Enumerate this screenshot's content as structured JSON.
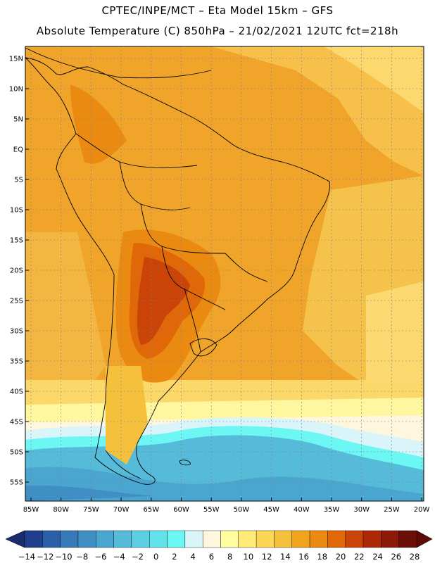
{
  "title": {
    "line1": "CPTEC/INPE/MCT –  Eta Model 15km – GFS",
    "line2": "Absolute Temperature (C) 850hPa – 21/02/2021 12UTC fct=218h"
  },
  "map": {
    "lat_labels": [
      "15N",
      "10N",
      "5N",
      "EQ",
      "5S",
      "10S",
      "15S",
      "20S",
      "25S",
      "30S",
      "35S",
      "40S",
      "45S",
      "50S",
      "55S"
    ],
    "lon_labels": [
      "85W",
      "80W",
      "75W",
      "70W",
      "65W",
      "60W",
      "55W",
      "50W",
      "45W",
      "40W",
      "35W",
      "30W",
      "25W",
      "20W"
    ]
  },
  "colorbar": {
    "labels": [
      "−14",
      "−12",
      "−10",
      "−8",
      "−6",
      "−4",
      "−2",
      "0",
      "2",
      "4",
      "6",
      "8",
      "10",
      "12",
      "14",
      "16",
      "18",
      "20",
      "22",
      "24",
      "26",
      "28"
    ],
    "colors": [
      "#1f3f8c",
      "#2a5fa8",
      "#3579b7",
      "#3f8fc4",
      "#4aa6cf",
      "#56bbd9",
      "#5dcfe3",
      "#62e3ec",
      "#6cf6f4",
      "#d9f5fa",
      "#fff6de",
      "#fffda0",
      "#ffec78",
      "#fcd655",
      "#f5c03c",
      "#efa41c",
      "#ea8a10",
      "#e06808",
      "#ca4408",
      "#ad2806",
      "#8b1a08",
      "#6b0e06"
    ],
    "under_color": "#1a2c6e",
    "over_color": "#5e0a06"
  }
}
